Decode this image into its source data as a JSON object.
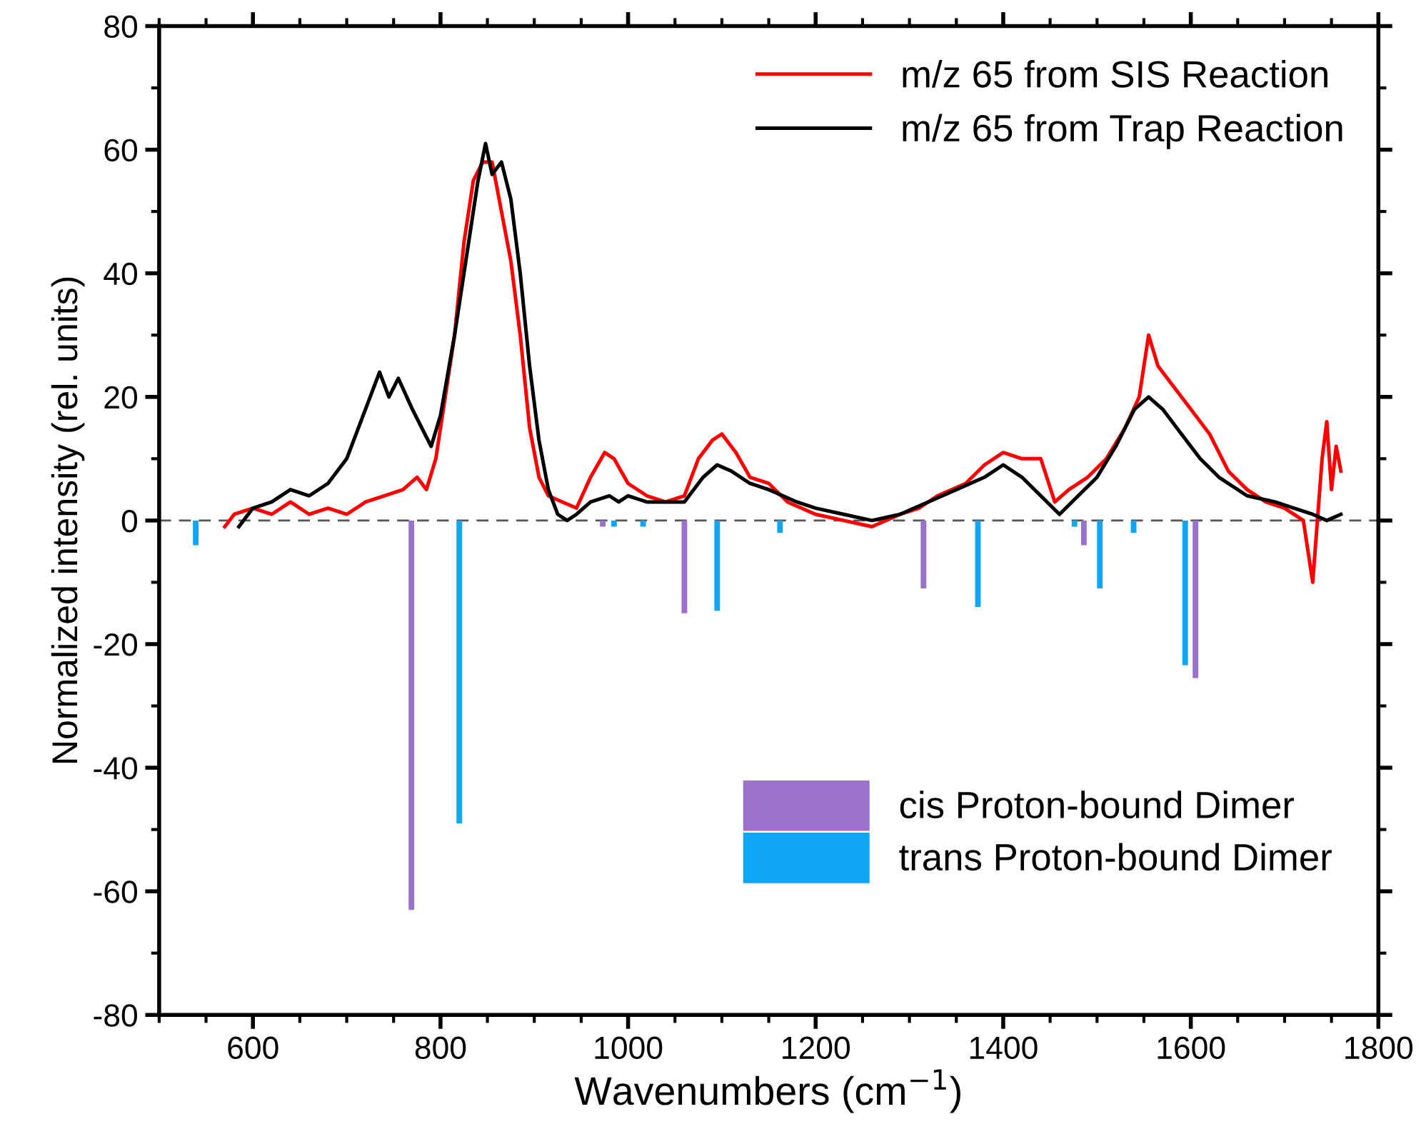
{
  "chart_data": {
    "type": "line",
    "xlabel": "Wavenumbers (cm$^{−1}$)",
    "ylabel": "Normalized intensity (rel. units)",
    "xlim": [
      500,
      1800
    ],
    "xticks": [
      600,
      800,
      1000,
      1200,
      1400,
      1600,
      1800
    ],
    "ylim": [
      -80,
      80
    ],
    "yticks": [
      -80,
      -60,
      -40,
      -20,
      0,
      20,
      40,
      60,
      80
    ],
    "grid": false,
    "legend": "top right",
    "marker": "none",
    "line_style": "solid",
    "ref_lines": [
      {
        "axis": "y",
        "value": 0,
        "color": "#555555",
        "line_style": "dashed"
      }
    ],
    "series": [
      {
        "name": "m/z 65 from SIS Reaction",
        "color": "#ff0000",
        "x": [
          570,
          580,
          600,
          620,
          640,
          660,
          680,
          700,
          720,
          740,
          760,
          775,
          785,
          795,
          805,
          815,
          825,
          835,
          845,
          855,
          865,
          875,
          885,
          895,
          905,
          915,
          930,
          945,
          960,
          975,
          985,
          1000,
          1020,
          1040,
          1060,
          1075,
          1090,
          1100,
          1115,
          1130,
          1150,
          1170,
          1200,
          1230,
          1260,
          1290,
          1310,
          1330,
          1360,
          1380,
          1400,
          1420,
          1440,
          1455,
          1470,
          1490,
          1510,
          1530,
          1545,
          1555,
          1565,
          1580,
          1600,
          1620,
          1640,
          1660,
          1680,
          1700,
          1720,
          1730,
          1740,
          1745,
          1750,
          1755,
          1760
        ],
        "values": [
          -1,
          1,
          2,
          1,
          3,
          1,
          2,
          1,
          3,
          4,
          5,
          7,
          5,
          10,
          20,
          30,
          45,
          55,
          58,
          58,
          50,
          42,
          30,
          15,
          7,
          4,
          3,
          2,
          7,
          11,
          10,
          6,
          4,
          3,
          4,
          10,
          13,
          14,
          11,
          7,
          6,
          3,
          1,
          0,
          -1,
          1,
          2,
          4,
          6,
          9,
          11,
          10,
          10,
          3,
          5,
          7,
          10,
          15,
          20,
          30,
          25,
          22,
          18,
          14,
          8,
          5,
          3,
          2,
          0,
          -10,
          10,
          16,
          5,
          12,
          8
        ]
      },
      {
        "name": "m/z 65 from Trap Reaction",
        "color": "#000000",
        "x": [
          585,
          600,
          620,
          640,
          660,
          680,
          700,
          720,
          735,
          745,
          755,
          770,
          790,
          800,
          815,
          830,
          840,
          848,
          855,
          865,
          875,
          885,
          895,
          905,
          915,
          925,
          935,
          945,
          960,
          980,
          990,
          1000,
          1020,
          1040,
          1060,
          1080,
          1095,
          1110,
          1130,
          1150,
          1180,
          1200,
          1230,
          1260,
          1290,
          1320,
          1350,
          1380,
          1400,
          1420,
          1440,
          1460,
          1480,
          1500,
          1520,
          1540,
          1555,
          1570,
          1590,
          1610,
          1630,
          1660,
          1690,
          1710,
          1730,
          1745,
          1760
        ],
        "values": [
          -1,
          2,
          3,
          5,
          4,
          6,
          10,
          18,
          24,
          20,
          23,
          18,
          12,
          17,
          30,
          45,
          55,
          61,
          56,
          58,
          52,
          40,
          25,
          13,
          5,
          1,
          0,
          1,
          3,
          4,
          3,
          4,
          3,
          3,
          3,
          7,
          9,
          8,
          6,
          5,
          3,
          2,
          1,
          0,
          1,
          3,
          5,
          7,
          9,
          7,
          4,
          1,
          4,
          7,
          12,
          18,
          20,
          18,
          14,
          10,
          7,
          4,
          3,
          2,
          1,
          0,
          1
        ]
      },
      {
        "name": "cis Proton-bound Dimer",
        "type": "bar",
        "color": "#9b72cb",
        "x": [
          769,
          973,
          1060,
          1315,
          1486,
          1605
        ],
        "values": [
          -63,
          -1,
          -15,
          -11,
          -4,
          -25.5
        ]
      },
      {
        "name": "trans Proton-bound Dimer",
        "type": "bar",
        "color": "#11a6f5",
        "x": [
          539,
          820,
          985,
          1016,
          1095,
          1162,
          1373,
          1476,
          1503,
          1539,
          1594
        ],
        "values": [
          -4,
          -49,
          -1,
          -1,
          -14.6,
          -2,
          -14,
          -1,
          -11,
          -2,
          -23.4
        ]
      }
    ]
  }
}
